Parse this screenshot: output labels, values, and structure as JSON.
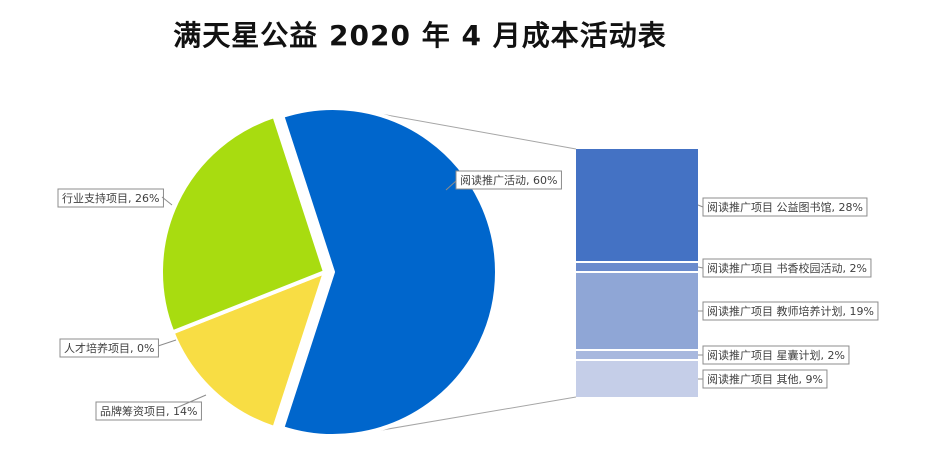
{
  "chart_data": [
    {
      "type": "pie",
      "title": "满天星公益 2020 年 4 月成本活动表",
      "slices": [
        {
          "label": "阅读推广活动",
          "value": 60,
          "value_label": "60%",
          "color": "#0066CC"
        },
        {
          "label": "品牌筹资项目",
          "value": 14,
          "value_label": "14%",
          "color": "#F8DD44"
        },
        {
          "label": "人才培养项目",
          "value": 0,
          "value_label": "0%",
          "color": "#F0A030"
        },
        {
          "label": "行业支持项目",
          "value": 26,
          "value_label": "26%",
          "color": "#A8DC10"
        }
      ],
      "exploded": "阅读推广活动"
    },
    {
      "type": "bar",
      "subtype": "stacked-breakdown",
      "parent": "阅读推广活动",
      "segments": [
        {
          "label": "阅读推广项目 公益图书馆",
          "value": 28,
          "value_label": "28%",
          "color": "#4472C4"
        },
        {
          "label": "阅读推广项目 书香校园活动",
          "value": 2,
          "value_label": "2%",
          "color": "#6A8BCD"
        },
        {
          "label": "阅读推广项目 教师培养计划",
          "value": 19,
          "value_label": "19%",
          "color": "#8FA6D6"
        },
        {
          "label": "阅读推广项目 星囊计划",
          "value": 2,
          "value_label": "2%",
          "color": "#A8B8DE"
        },
        {
          "label": "阅读推广项目 其他",
          "value": 9,
          "value_label": "9%",
          "color": "#C5CEE8"
        }
      ]
    }
  ]
}
